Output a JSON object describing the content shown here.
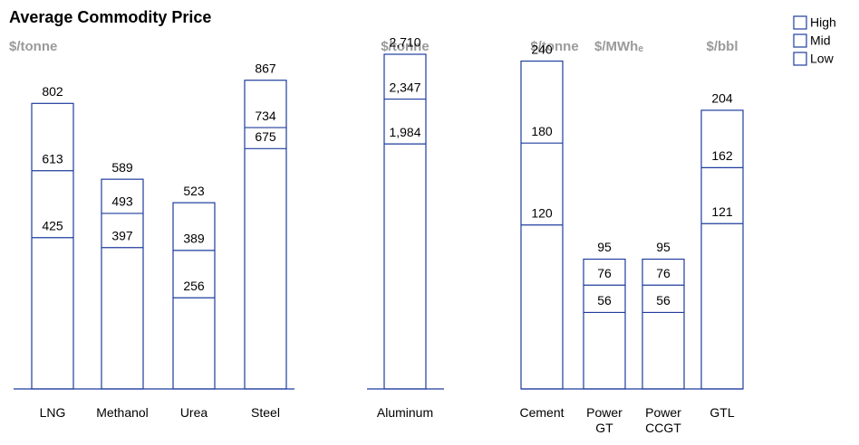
{
  "chart_data": [
    {
      "type": "bar",
      "title": "Average Commodity Price",
      "unit": "$/tonne",
      "legend": "top-right",
      "categories": [
        "LNG",
        "Methanol",
        "Urea",
        "Steel"
      ],
      "ylim": [
        0,
        940
      ],
      "series": [
        {
          "name": "High",
          "color": "#1f3c9e",
          "values": [
            802,
            589,
            523,
            867
          ]
        },
        {
          "name": "Mid",
          "color": "#1f3c9e",
          "values": [
            613,
            493,
            389,
            734
          ]
        },
        {
          "name": "Low",
          "color": "#1f3c9e",
          "values": [
            425,
            397,
            256,
            675
          ]
        }
      ]
    },
    {
      "type": "bar",
      "unit": "$/tonne",
      "categories": [
        "Aluminum"
      ],
      "ylim": [
        0,
        2710
      ],
      "series": [
        {
          "name": "High",
          "color": "#1f3c9e",
          "values": [
            2710
          ],
          "value_labels": [
            "2,710"
          ]
        },
        {
          "name": "Mid",
          "color": "#1f3c9e",
          "values": [
            2347
          ],
          "value_labels": [
            "2,347"
          ]
        },
        {
          "name": "Low",
          "color": "#1f3c9e",
          "values": [
            1984
          ],
          "value_labels": [
            "1,984"
          ]
        }
      ]
    },
    {
      "type": "bar",
      "units": [
        "$/tonne",
        "$/MWhₑ",
        "$/bbl"
      ],
      "categories": [
        "Cement",
        "Power GT",
        "Power CCGT",
        "GTL"
      ],
      "ylim": [
        0,
        245
      ],
      "series": [
        {
          "name": "High",
          "color": "#1f3c9e",
          "values": [
            240,
            95,
            95,
            204
          ]
        },
        {
          "name": "Mid",
          "color": "#1f3c9e",
          "values": [
            180,
            76,
            76,
            162
          ]
        },
        {
          "name": "Low",
          "color": "#1f3c9e",
          "values": [
            120,
            56,
            56,
            121
          ]
        }
      ]
    }
  ]
}
